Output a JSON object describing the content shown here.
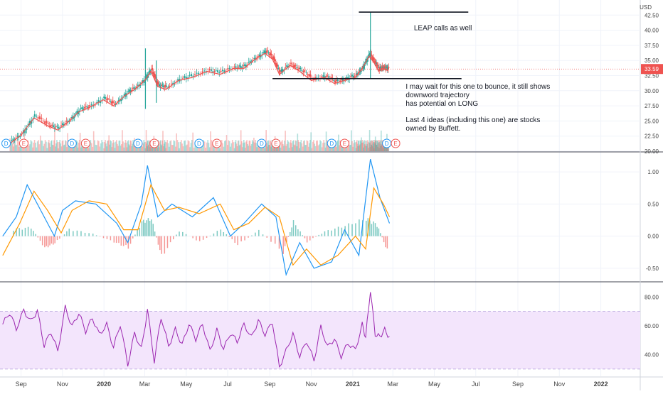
{
  "chart_data": [
    {
      "panel": "price",
      "type": "candlestick",
      "currency": "USD",
      "ylim": [
        20,
        45
      ],
      "y_ticks": [
        "20.00",
        "22.50",
        "25.00",
        "27.50",
        "30.00",
        "32.50",
        "35.00",
        "37.50",
        "40.00",
        "42.50"
      ],
      "last_price": "33.59",
      "closes": [
        {
          "x": "2019-08-15",
          "y": 21.5
        },
        {
          "x": "2019-09-01",
          "y": 23.0
        },
        {
          "x": "2019-09-20",
          "y": 25.8
        },
        {
          "x": "2019-10-10",
          "y": 24.5
        },
        {
          "x": "2019-10-25",
          "y": 23.8
        },
        {
          "x": "2019-11-10",
          "y": 25.2
        },
        {
          "x": "2019-11-25",
          "y": 26.8
        },
        {
          "x": "2019-12-10",
          "y": 27.5
        },
        {
          "x": "2019-12-31",
          "y": 28.8
        },
        {
          "x": "2020-01-15",
          "y": 27.8
        },
        {
          "x": "2020-02-01",
          "y": 29.5
        },
        {
          "x": "2020-02-15",
          "y": 30.5
        },
        {
          "x": "2020-03-01",
          "y": 32.0
        },
        {
          "x": "2020-03-10",
          "y": 33.5
        },
        {
          "x": "2020-03-20",
          "y": 31.0
        },
        {
          "x": "2020-04-01",
          "y": 30.5
        },
        {
          "x": "2020-04-20",
          "y": 32.0
        },
        {
          "x": "2020-05-10",
          "y": 32.5
        },
        {
          "x": "2020-06-01",
          "y": 33.5
        },
        {
          "x": "2020-06-20",
          "y": 33.0
        },
        {
          "x": "2020-07-10",
          "y": 34.0
        },
        {
          "x": "2020-07-25",
          "y": 34.0
        },
        {
          "x": "2020-08-10",
          "y": 35.5
        },
        {
          "x": "2020-08-25",
          "y": 36.5
        },
        {
          "x": "2020-09-05",
          "y": 35.5
        },
        {
          "x": "2020-09-15",
          "y": 33.0
        },
        {
          "x": "2020-10-01",
          "y": 34.5
        },
        {
          "x": "2020-10-15",
          "y": 33.5
        },
        {
          "x": "2020-11-01",
          "y": 32.0
        },
        {
          "x": "2020-11-20",
          "y": 32.5
        },
        {
          "x": "2020-12-05",
          "y": 31.5
        },
        {
          "x": "2020-12-20",
          "y": 32.0
        },
        {
          "x": "2021-01-05",
          "y": 32.5
        },
        {
          "x": "2021-01-15",
          "y": 34.0
        },
        {
          "x": "2021-01-25",
          "y": 36.0
        },
        {
          "x": "2021-02-01",
          "y": 35.0
        },
        {
          "x": "2021-02-08",
          "y": 33.5
        },
        {
          "x": "2021-02-15",
          "y": 34.0
        },
        {
          "x": "2021-02-22",
          "y": 33.59
        }
      ],
      "spikes": [
        {
          "x": "2020-03-02",
          "high": 37.0,
          "low": 27.0
        },
        {
          "x": "2020-03-18",
          "high": 35.0,
          "low": 28.0
        },
        {
          "x": "2021-01-27",
          "high": 43.0,
          "low": 32.0
        }
      ],
      "volume_max": 1,
      "event_markers": [
        {
          "x": "2019-08-10",
          "label": "D"
        },
        {
          "x": "2019-09-05",
          "label": "E"
        },
        {
          "x": "2019-11-15",
          "label": "D"
        },
        {
          "x": "2019-12-05",
          "label": "E"
        },
        {
          "x": "2020-02-20",
          "label": "D"
        },
        {
          "x": "2020-03-15",
          "label": "E"
        },
        {
          "x": "2020-05-20",
          "label": "D"
        },
        {
          "x": "2020-06-15",
          "label": "E"
        },
        {
          "x": "2020-08-20",
          "label": "D"
        },
        {
          "x": "2020-09-10",
          "label": "E"
        },
        {
          "x": "2020-12-01",
          "label": "D"
        },
        {
          "x": "2020-12-20",
          "label": "E"
        },
        {
          "x": "2021-02-20",
          "label": "D"
        },
        {
          "x": "2021-03-05",
          "label": "E"
        }
      ],
      "lines": [
        {
          "x1": "2021-01-10",
          "x2": "2021-06-20",
          "y": 43.0
        },
        {
          "x1": "2020-09-05",
          "x2": "2021-06-10",
          "y": 32.0
        }
      ],
      "annotations": [
        {
          "text": "LEAP calls as well",
          "x": "2021-04-01",
          "y": 40.0
        },
        {
          "text": "I may wait for this one to bounce, it still shows",
          "x": "2021-03-20",
          "y": 30.3
        },
        {
          "text": "downword trajectory",
          "x": "2021-03-20",
          "y": 28.9
        },
        {
          "text": "has potential on LONG",
          "x": "2021-03-20",
          "y": 27.5
        },
        {
          "text": "Last 4 ideas (including this one) are stocks",
          "x": "2021-03-20",
          "y": 24.8
        },
        {
          "text": "owned by Buffett.",
          "x": "2021-03-20",
          "y": 23.4
        }
      ]
    },
    {
      "panel": "macd",
      "type": "line",
      "ylim": [
        -0.7,
        1.3
      ],
      "y_ticks": [
        "1.00",
        "0.50",
        "0.00",
        "-0.50"
      ],
      "series": [
        {
          "color": "#2196f3",
          "points": [
            {
              "x": "2019-08-05",
              "y": 0.0
            },
            {
              "x": "2019-08-25",
              "y": 0.3
            },
            {
              "x": "2019-09-10",
              "y": 0.8
            },
            {
              "x": "2019-09-30",
              "y": 0.4
            },
            {
              "x": "2019-10-20",
              "y": 0.0
            },
            {
              "x": "2019-11-01",
              "y": 0.4
            },
            {
              "x": "2019-11-20",
              "y": 0.55
            },
            {
              "x": "2019-12-20",
              "y": 0.5
            },
            {
              "x": "2020-01-20",
              "y": 0.2
            },
            {
              "x": "2020-02-05",
              "y": -0.1
            },
            {
              "x": "2020-02-25",
              "y": 0.5
            },
            {
              "x": "2020-03-05",
              "y": 1.1
            },
            {
              "x": "2020-03-20",
              "y": 0.3
            },
            {
              "x": "2020-04-10",
              "y": 0.5
            },
            {
              "x": "2020-05-10",
              "y": 0.3
            },
            {
              "x": "2020-06-10",
              "y": 0.6
            },
            {
              "x": "2020-07-05",
              "y": 0.0
            },
            {
              "x": "2020-07-25",
              "y": 0.2
            },
            {
              "x": "2020-08-20",
              "y": 0.5
            },
            {
              "x": "2020-09-10",
              "y": 0.3
            },
            {
              "x": "2020-09-25",
              "y": -0.6
            },
            {
              "x": "2020-10-15",
              "y": -0.1
            },
            {
              "x": "2020-11-05",
              "y": -0.5
            },
            {
              "x": "2020-12-01",
              "y": -0.4
            },
            {
              "x": "2020-12-20",
              "y": 0.1
            },
            {
              "x": "2021-01-10",
              "y": -0.3
            },
            {
              "x": "2021-01-27",
              "y": 1.2
            },
            {
              "x": "2021-02-10",
              "y": 0.6
            },
            {
              "x": "2021-02-24",
              "y": 0.2
            }
          ]
        },
        {
          "color": "#ff9800",
          "points": [
            {
              "x": "2019-08-05",
              "y": -0.3
            },
            {
              "x": "2019-08-30",
              "y": 0.2
            },
            {
              "x": "2019-09-20",
              "y": 0.7
            },
            {
              "x": "2019-10-10",
              "y": 0.4
            },
            {
              "x": "2019-10-30",
              "y": 0.05
            },
            {
              "x": "2019-11-15",
              "y": 0.4
            },
            {
              "x": "2019-12-10",
              "y": 0.55
            },
            {
              "x": "2020-01-05",
              "y": 0.5
            },
            {
              "x": "2020-01-30",
              "y": 0.1
            },
            {
              "x": "2020-02-20",
              "y": 0.1
            },
            {
              "x": "2020-03-10",
              "y": 0.8
            },
            {
              "x": "2020-03-30",
              "y": 0.4
            },
            {
              "x": "2020-04-20",
              "y": 0.45
            },
            {
              "x": "2020-05-20",
              "y": 0.35
            },
            {
              "x": "2020-06-20",
              "y": 0.5
            },
            {
              "x": "2020-07-10",
              "y": 0.1
            },
            {
              "x": "2020-08-01",
              "y": 0.2
            },
            {
              "x": "2020-08-25",
              "y": 0.45
            },
            {
              "x": "2020-09-15",
              "y": 0.3
            },
            {
              "x": "2020-10-05",
              "y": -0.45
            },
            {
              "x": "2020-10-25",
              "y": -0.2
            },
            {
              "x": "2020-11-15",
              "y": -0.45
            },
            {
              "x": "2020-12-10",
              "y": -0.3
            },
            {
              "x": "2021-01-05",
              "y": 0.0
            },
            {
              "x": "2021-01-20",
              "y": -0.2
            },
            {
              "x": "2021-02-01",
              "y": 0.75
            },
            {
              "x": "2021-02-15",
              "y": 0.5
            },
            {
              "x": "2021-02-24",
              "y": 0.3
            }
          ]
        }
      ],
      "histogram": [
        {
          "x": "2019-08-20",
          "y": 0.12
        },
        {
          "x": "2019-09-15",
          "y": 0.15
        },
        {
          "x": "2019-10-05",
          "y": -0.2
        },
        {
          "x": "2019-10-20",
          "y": -0.12
        },
        {
          "x": "2019-11-10",
          "y": 0.12
        },
        {
          "x": "2019-12-15",
          "y": 0.04
        },
        {
          "x": "2020-01-15",
          "y": -0.1
        },
        {
          "x": "2020-02-05",
          "y": -0.2
        },
        {
          "x": "2020-02-25",
          "y": 0.25
        },
        {
          "x": "2020-03-10",
          "y": 0.3
        },
        {
          "x": "2020-03-25",
          "y": -0.35
        },
        {
          "x": "2020-04-20",
          "y": 0.1
        },
        {
          "x": "2020-05-20",
          "y": -0.1
        },
        {
          "x": "2020-06-20",
          "y": 0.12
        },
        {
          "x": "2020-07-15",
          "y": -0.15
        },
        {
          "x": "2020-08-15",
          "y": 0.1
        },
        {
          "x": "2020-09-20",
          "y": -0.28
        },
        {
          "x": "2020-10-05",
          "y": 0.25
        },
        {
          "x": "2020-10-25",
          "y": -0.1
        },
        {
          "x": "2020-11-20",
          "y": 0.08
        },
        {
          "x": "2020-12-20",
          "y": 0.18
        },
        {
          "x": "2021-01-20",
          "y": 0.3
        },
        {
          "x": "2021-02-05",
          "y": 0.2
        },
        {
          "x": "2021-02-20",
          "y": -0.25
        }
      ]
    },
    {
      "panel": "rsi",
      "type": "line",
      "ylim": [
        25,
        90
      ],
      "y_ticks": [
        "80.00",
        "60.00",
        "40.00"
      ],
      "band": [
        30,
        70
      ],
      "series": [
        {
          "color": "#9c27b0",
          "points": [
            {
              "x": "2019-08-05",
              "y": 60
            },
            {
              "x": "2019-08-15",
              "y": 68
            },
            {
              "x": "2019-08-25",
              "y": 58
            },
            {
              "x": "2019-09-05",
              "y": 72
            },
            {
              "x": "2019-09-15",
              "y": 64
            },
            {
              "x": "2019-09-25",
              "y": 70
            },
            {
              "x": "2019-10-05",
              "y": 45
            },
            {
              "x": "2019-10-15",
              "y": 55
            },
            {
              "x": "2019-10-25",
              "y": 43
            },
            {
              "x": "2019-11-05",
              "y": 74
            },
            {
              "x": "2019-11-15",
              "y": 60
            },
            {
              "x": "2019-11-25",
              "y": 68
            },
            {
              "x": "2019-12-05",
              "y": 55
            },
            {
              "x": "2019-12-15",
              "y": 65
            },
            {
              "x": "2019-12-25",
              "y": 55
            },
            {
              "x": "2020-01-05",
              "y": 62
            },
            {
              "x": "2020-01-15",
              "y": 45
            },
            {
              "x": "2020-01-25",
              "y": 60
            },
            {
              "x": "2020-02-05",
              "y": 32
            },
            {
              "x": "2020-02-15",
              "y": 55
            },
            {
              "x": "2020-02-25",
              "y": 45
            },
            {
              "x": "2020-03-05",
              "y": 72
            },
            {
              "x": "2020-03-15",
              "y": 35
            },
            {
              "x": "2020-03-25",
              "y": 65
            },
            {
              "x": "2020-04-05",
              "y": 45
            },
            {
              "x": "2020-04-15",
              "y": 58
            },
            {
              "x": "2020-04-25",
              "y": 48
            },
            {
              "x": "2020-05-05",
              "y": 62
            },
            {
              "x": "2020-05-15",
              "y": 50
            },
            {
              "x": "2020-05-25",
              "y": 60
            },
            {
              "x": "2020-06-05",
              "y": 42
            },
            {
              "x": "2020-06-15",
              "y": 58
            },
            {
              "x": "2020-06-25",
              "y": 45
            },
            {
              "x": "2020-07-05",
              "y": 55
            },
            {
              "x": "2020-07-15",
              "y": 48
            },
            {
              "x": "2020-07-25",
              "y": 60
            },
            {
              "x": "2020-08-05",
              "y": 52
            },
            {
              "x": "2020-08-15",
              "y": 65
            },
            {
              "x": "2020-08-25",
              "y": 55
            },
            {
              "x": "2020-09-05",
              "y": 62
            },
            {
              "x": "2020-09-15",
              "y": 30
            },
            {
              "x": "2020-09-25",
              "y": 42
            },
            {
              "x": "2020-10-05",
              "y": 55
            },
            {
              "x": "2020-10-15",
              "y": 40
            },
            {
              "x": "2020-10-25",
              "y": 50
            },
            {
              "x": "2020-11-05",
              "y": 35
            },
            {
              "x": "2020-11-15",
              "y": 58
            },
            {
              "x": "2020-11-25",
              "y": 45
            },
            {
              "x": "2020-12-05",
              "y": 52
            },
            {
              "x": "2020-12-15",
              "y": 40
            },
            {
              "x": "2020-12-25",
              "y": 48
            },
            {
              "x": "2021-01-05",
              "y": 42
            },
            {
              "x": "2021-01-15",
              "y": 60
            },
            {
              "x": "2021-01-20",
              "y": 52
            },
            {
              "x": "2021-01-27",
              "y": 86
            },
            {
              "x": "2021-02-03",
              "y": 55
            },
            {
              "x": "2021-02-10",
              "y": 52
            },
            {
              "x": "2021-02-17",
              "y": 56
            },
            {
              "x": "2021-02-24",
              "y": 51
            }
          ]
        }
      ]
    }
  ],
  "x_axis": {
    "range": [
      "2019-08-01",
      "2022-02-28"
    ],
    "ticks": [
      {
        "x": "2019-09-01",
        "label": "Sep",
        "bold": false
      },
      {
        "x": "2019-11-01",
        "label": "Nov",
        "bold": false
      },
      {
        "x": "2020-01-01",
        "label": "2020",
        "bold": true
      },
      {
        "x": "2020-03-01",
        "label": "Mar",
        "bold": false
      },
      {
        "x": "2020-05-01",
        "label": "May",
        "bold": false
      },
      {
        "x": "2020-07-01",
        "label": "Jul",
        "bold": false
      },
      {
        "x": "2020-09-01",
        "label": "Sep",
        "bold": false
      },
      {
        "x": "2020-11-01",
        "label": "Nov",
        "bold": false
      },
      {
        "x": "2021-01-01",
        "label": "2021",
        "bold": true
      },
      {
        "x": "2021-03-01",
        "label": "Mar",
        "bold": false
      },
      {
        "x": "2021-05-01",
        "label": "May",
        "bold": false
      },
      {
        "x": "2021-07-01",
        "label": "Jul",
        "bold": false
      },
      {
        "x": "2021-09-01",
        "label": "Sep",
        "bold": false
      },
      {
        "x": "2021-11-01",
        "label": "Nov",
        "bold": false
      },
      {
        "x": "2022-01-01",
        "label": "2022",
        "bold": true
      }
    ]
  },
  "colors": {
    "up": "#26a69a",
    "down": "#ef5350",
    "ma": "#ef5350",
    "last_price_bg": "#ef5350",
    "rsi_band": "#f3e5fc",
    "grid": "#f0f3fa",
    "axis_text": "#444444",
    "annotation_text": "#131722",
    "dividend_marker": "#2196f3",
    "earnings_marker": "#ef5350"
  }
}
